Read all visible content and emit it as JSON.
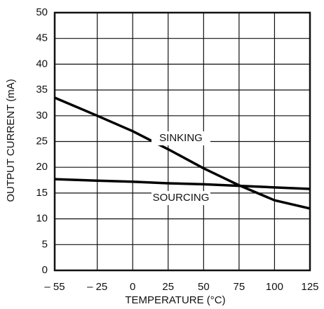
{
  "chart_data": {
    "type": "line",
    "x_label": "TEMPERATURE (°C)",
    "y_label": "OUTPUT CURRENT (mA)",
    "x": [
      -55,
      -25,
      0,
      25,
      50,
      75,
      100,
      125
    ],
    "series": [
      {
        "name": "SINKING",
        "color": "#000000",
        "values": [
          33.5,
          30,
          27,
          23.5,
          19.8,
          16.5,
          13.6,
          12
        ]
      },
      {
        "name": "SOURCING",
        "color": "#000000",
        "values": [
          17.7,
          17.4,
          17.2,
          16.9,
          16.7,
          16.4,
          16.1,
          15.8
        ]
      }
    ],
    "xlim": [
      -55,
      125
    ],
    "xticks": [
      {
        "value": -55,
        "label": "– 55"
      },
      {
        "value": -25,
        "label": "– 25"
      },
      0,
      25,
      50,
      75,
      100,
      125
    ],
    "ylim": [
      0,
      50
    ],
    "yticks": [
      0,
      5,
      10,
      15,
      20,
      25,
      30,
      35,
      40,
      45,
      50
    ],
    "grid": true
  }
}
